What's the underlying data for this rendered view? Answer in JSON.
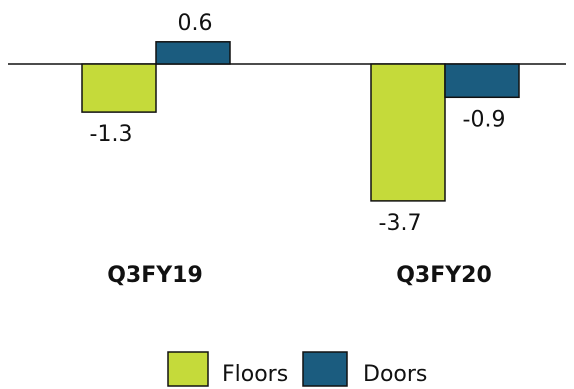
{
  "chart_data": {
    "type": "bar",
    "categories": [
      "Q3FY19",
      "Q3FY20"
    ],
    "series": [
      {
        "name": "Floors",
        "values": [
          -1.3,
          -3.7
        ],
        "color": "#C5DA3A"
      },
      {
        "name": "Doors",
        "values": [
          0.6,
          -0.9
        ],
        "color": "#1B5C7F"
      }
    ],
    "value_labels": [
      [
        "-1.3",
        "-3.7"
      ],
      [
        "0.6",
        "-0.9"
      ]
    ],
    "legend_position": "bottom",
    "grid": false,
    "ylim": [
      -3.7,
      0.6
    ]
  }
}
